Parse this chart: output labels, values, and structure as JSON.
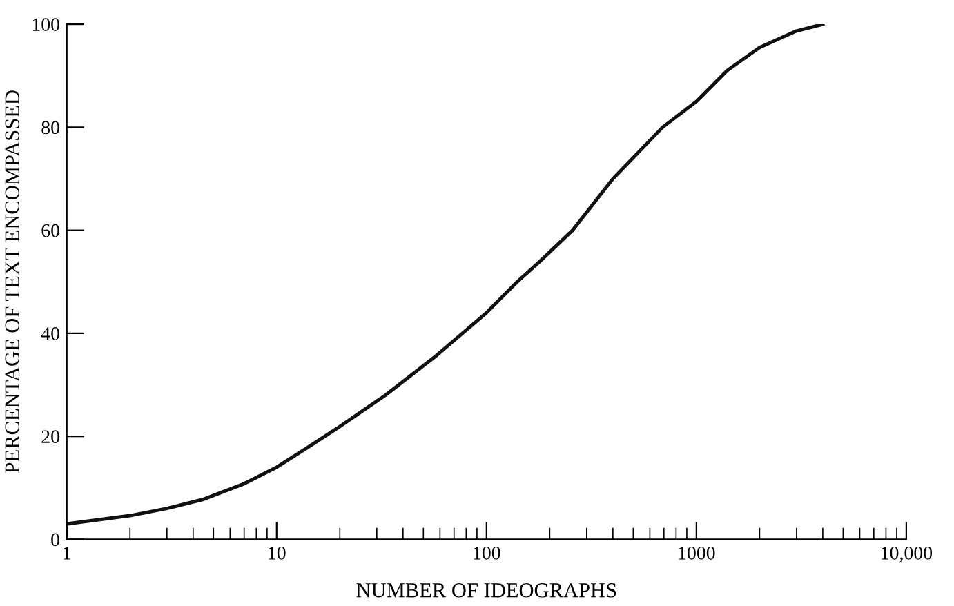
{
  "chart_data": {
    "type": "line",
    "xlabel": "NUMBER OF IDEOGRAPHS",
    "ylabel": "PERCENTAGE OF TEXT ENCOMPASSED",
    "log": "x",
    "xlim": [
      1,
      10000
    ],
    "ylim": [
      0,
      100
    ],
    "xticks": [
      1,
      10,
      100,
      1000,
      {
        "value": 10000,
        "label": "10,000"
      }
    ],
    "yticks": [
      0,
      20,
      40,
      60,
      80,
      100
    ],
    "grid": false,
    "marker": "none",
    "line_style": "solid",
    "series": [
      {
        "color": "#111111",
        "x": [
          1,
          2,
          3,
          4.5,
          7,
          10,
          14,
          19.5,
          33,
          57,
          100,
          140,
          180,
          257,
          400,
          690,
          1000,
          1400,
          2000,
          3000,
          4000
        ],
        "values": [
          3,
          4.6,
          6,
          7.8,
          10.8,
          14,
          17.8,
          21.6,
          28,
          35.5,
          44,
          50,
          54,
          60,
          70,
          80,
          85,
          91,
          95.5,
          98.7,
          100
        ]
      }
    ]
  }
}
